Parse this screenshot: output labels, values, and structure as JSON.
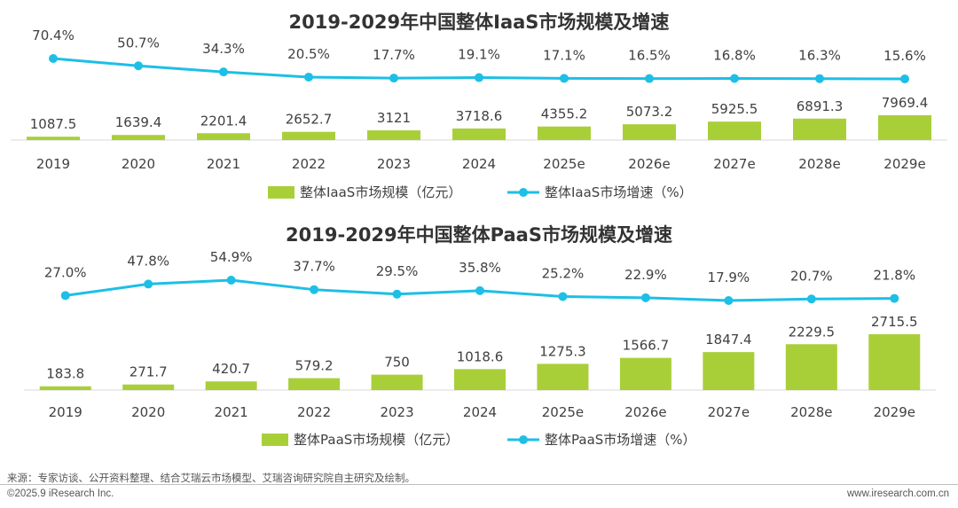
{
  "colors": {
    "bar": "#A9CF38",
    "line": "#1DBFE6"
  },
  "chart_data": [
    {
      "type": "bar",
      "title": "2019-2029年中国整体IaaS市场规模及增速",
      "categories": [
        "2019",
        "2020",
        "2021",
        "2022",
        "2023",
        "2024",
        "2025e",
        "2026e",
        "2027e",
        "2028e",
        "2029e"
      ],
      "series": [
        {
          "name": "整体IaaS市场规模（亿元）",
          "type": "bar",
          "values": [
            1087.5,
            1639.4,
            2201.4,
            2652.7,
            3121,
            3718.6,
            4355.2,
            5073.2,
            5925.5,
            6891.3,
            7969.4
          ]
        },
        {
          "name": "整体IaaS市场增速（%）",
          "type": "line",
          "values": [
            70.4,
            50.7,
            34.3,
            20.5,
            17.7,
            19.1,
            17.1,
            16.5,
            16.8,
            16.3,
            15.6
          ]
        }
      ]
    },
    {
      "type": "bar",
      "title": "2019-2029年中国整体PaaS市场规模及增速",
      "categories": [
        "2019",
        "2020",
        "2021",
        "2022",
        "2023",
        "2024",
        "2025e",
        "2026e",
        "2027e",
        "2028e",
        "2029e"
      ],
      "series": [
        {
          "name": "整体PaaS市场规模（亿元）",
          "type": "bar",
          "values": [
            183.8,
            271.7,
            420.7,
            579.2,
            750,
            1018.6,
            1275.3,
            1566.7,
            1847.4,
            2229.5,
            2715.5
          ]
        },
        {
          "name": "整体PaaS市场增速（%）",
          "type": "line",
          "values": [
            27.0,
            47.8,
            54.9,
            37.7,
            29.5,
            35.8,
            25.2,
            22.9,
            17.9,
            20.7,
            21.8
          ]
        }
      ]
    }
  ],
  "footer": {
    "source": "来源：专家访谈、公开资料整理、结合艾瑞云市场模型、艾瑞咨询研究院自主研究及绘制。",
    "copyright": "©2025.9 iResearch Inc.",
    "url": "www.iresearch.com.cn"
  }
}
